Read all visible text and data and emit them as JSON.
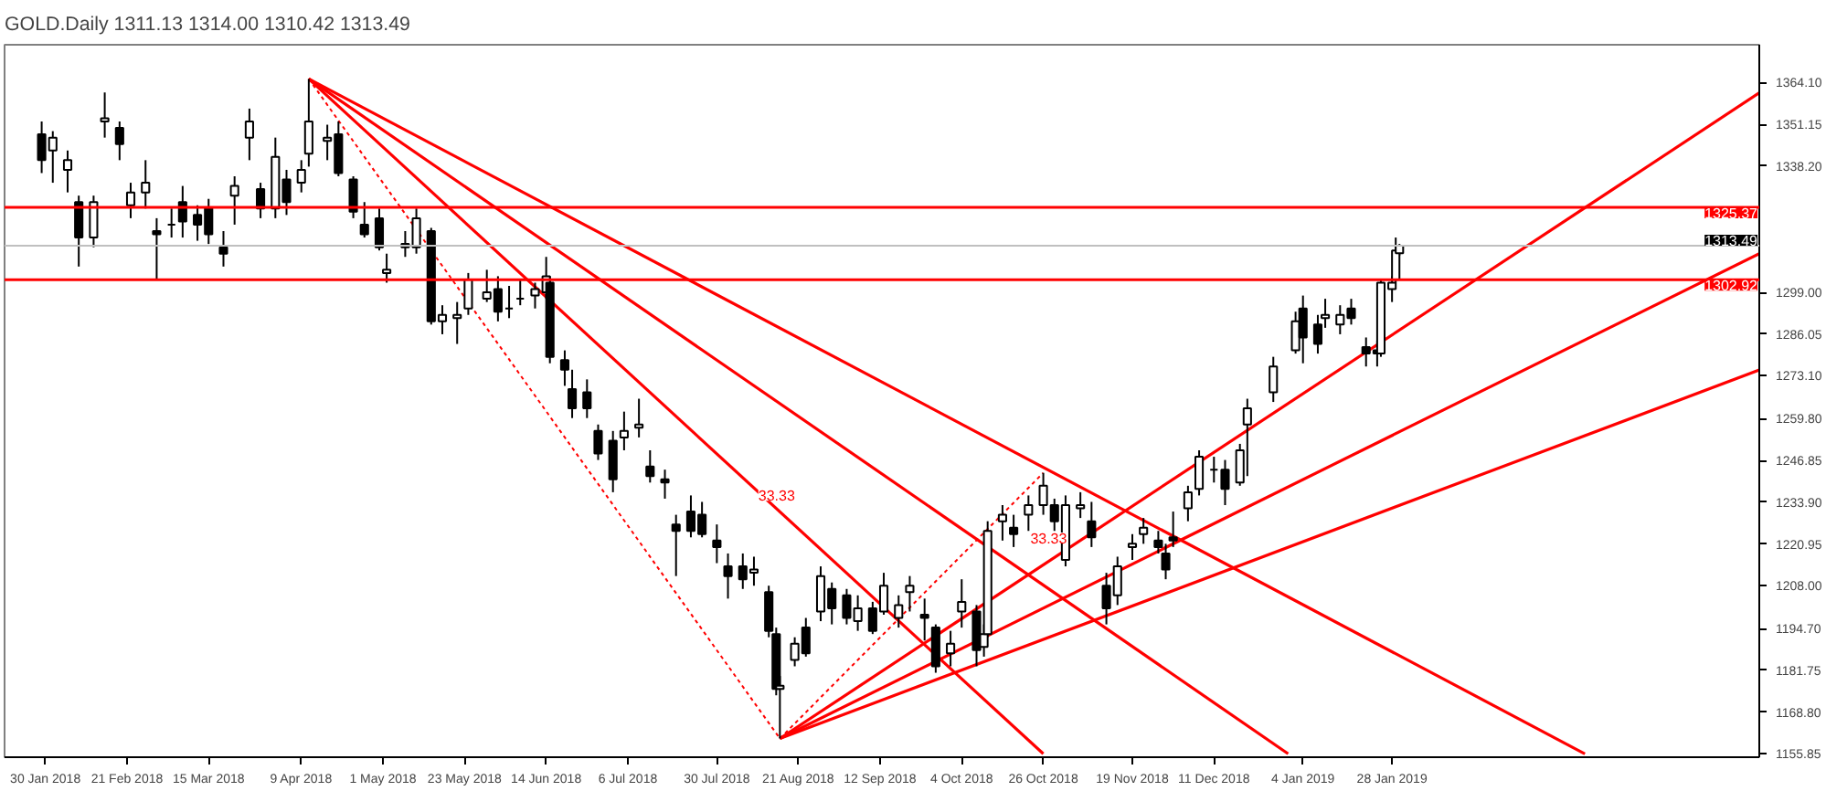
{
  "chart_data": {
    "type": "candlestick",
    "title": "GOLD.Daily  1311.13 1314.00 1310.42 1313.49",
    "x": [
      "2018-01-29",
      "2018-02-01",
      "2018-02-05",
      "2018-02-08",
      "2018-02-12",
      "2018-02-15",
      "2018-02-19",
      "2018-02-22",
      "2018-02-26",
      "2018-03-01",
      "2018-03-05",
      "2018-03-08",
      "2018-03-12",
      "2018-03-15",
      "2018-03-19",
      "2018-03-22",
      "2018-03-26",
      "2018-03-29",
      "2018-04-02",
      "2018-04-05",
      "2018-04-09",
      "2018-04-11",
      "2018-04-16",
      "2018-04-19",
      "2018-04-23",
      "2018-04-26",
      "2018-04-30",
      "2018-05-02",
      "2018-05-07",
      "2018-05-10",
      "2018-05-14",
      "2018-05-17",
      "2018-05-21",
      "2018-05-24",
      "2018-05-29",
      "2018-06-01",
      "2018-06-04",
      "2018-06-07",
      "2018-06-11",
      "2018-06-14",
      "2018-06-15",
      "2018-06-19",
      "2018-06-21",
      "2018-06-25",
      "2018-06-28",
      "2018-07-02",
      "2018-07-05",
      "2018-07-09",
      "2018-07-12",
      "2018-07-16",
      "2018-07-19",
      "2018-07-23",
      "2018-07-26",
      "2018-07-30",
      "2018-08-02",
      "2018-08-06",
      "2018-08-09",
      "2018-08-13",
      "2018-08-15",
      "2018-08-16",
      "2018-08-20",
      "2018-08-23",
      "2018-08-27",
      "2018-08-30",
      "2018-09-03",
      "2018-09-06",
      "2018-09-10",
      "2018-09-13",
      "2018-09-17",
      "2018-09-20",
      "2018-09-24",
      "2018-09-27",
      "2018-10-01",
      "2018-10-04",
      "2018-10-08",
      "2018-10-10",
      "2018-10-11",
      "2018-10-15",
      "2018-10-18",
      "2018-10-22",
      "2018-10-26",
      "2018-10-29",
      "2018-11-01",
      "2018-11-05",
      "2018-11-08",
      "2018-11-12",
      "2018-11-15",
      "2018-11-19",
      "2018-11-22",
      "2018-11-26",
      "2018-11-28",
      "2018-11-30",
      "2018-12-04",
      "2018-12-07",
      "2018-12-11",
      "2018-12-14",
      "2018-12-18",
      "2018-12-20",
      "2018-12-27",
      "2019-01-02",
      "2019-01-04",
      "2019-01-08",
      "2019-01-10",
      "2019-01-14",
      "2019-01-17",
      "2019-01-21",
      "2019-01-24",
      "2019-01-25",
      "2019-01-28",
      "2019-01-29",
      "2019-01-30"
    ],
    "ohlc": [
      [
        1348,
        1352,
        1336,
        1340
      ],
      [
        1343,
        1349,
        1333,
        1347
      ],
      [
        1337,
        1343,
        1330,
        1340
      ],
      [
        1327,
        1329,
        1307,
        1316
      ],
      [
        1316,
        1329,
        1313,
        1327
      ],
      [
        1352,
        1361,
        1347,
        1353
      ],
      [
        1350,
        1352,
        1340,
        1345
      ],
      [
        1326,
        1333,
        1322,
        1330
      ],
      [
        1330,
        1340,
        1325,
        1333
      ],
      [
        1318,
        1322,
        1303,
        1317
      ],
      [
        1320,
        1325,
        1316,
        1320
      ],
      [
        1327,
        1332,
        1316,
        1321
      ],
      [
        1323,
        1326,
        1315,
        1320
      ],
      [
        1325,
        1328,
        1314,
        1317
      ],
      [
        1313,
        1318,
        1307,
        1311
      ],
      [
        1329,
        1335,
        1320,
        1332
      ],
      [
        1347,
        1356,
        1340,
        1352
      ],
      [
        1331,
        1333,
        1322,
        1325
      ],
      [
        1325,
        1347,
        1322,
        1341
      ],
      [
        1334,
        1337,
        1323,
        1327
      ],
      [
        1333,
        1340,
        1330,
        1337
      ],
      [
        1342,
        1365.2,
        1338,
        1352
      ],
      [
        1346,
        1351,
        1340,
        1347
      ],
      [
        1348,
        1352,
        1335,
        1336
      ],
      [
        1334,
        1335,
        1322,
        1324
      ],
      [
        1320,
        1327,
        1316,
        1317
      ],
      [
        1322,
        1325,
        1312,
        1313
      ],
      [
        1305,
        1311,
        1302,
        1306
      ],
      [
        1314,
        1318,
        1310,
        1313
      ],
      [
        1313,
        1325,
        1311,
        1322
      ],
      [
        1318,
        1319,
        1289,
        1290
      ],
      [
        1290,
        1295,
        1286,
        1292
      ],
      [
        1291,
        1296,
        1283,
        1292
      ],
      [
        1294,
        1305,
        1292,
        1303
      ],
      [
        1297,
        1306,
        1296,
        1299
      ],
      [
        1300,
        1304,
        1290,
        1293
      ],
      [
        1294,
        1301,
        1291,
        1294
      ],
      [
        1297,
        1303,
        1295,
        1297
      ],
      [
        1298,
        1302,
        1294,
        1300
      ],
      [
        1299,
        1310,
        1297,
        1304
      ],
      [
        1302,
        1304,
        1277,
        1279
      ],
      [
        1278,
        1281,
        1270,
        1275
      ],
      [
        1269,
        1275,
        1260,
        1263
      ],
      [
        1268,
        1272,
        1260,
        1263
      ],
      [
        1256,
        1258,
        1247,
        1249
      ],
      [
        1253,
        1256,
        1237,
        1241
      ],
      [
        1254,
        1262,
        1250,
        1256
      ],
      [
        1257,
        1266,
        1254,
        1258
      ],
      [
        1245,
        1250,
        1240,
        1242
      ],
      [
        1241,
        1244,
        1235,
        1240
      ],
      [
        1227,
        1230,
        1211,
        1225
      ],
      [
        1231,
        1236,
        1223,
        1225
      ],
      [
        1230,
        1234,
        1223,
        1224
      ],
      [
        1222,
        1227,
        1215,
        1220
      ],
      [
        1214,
        1218,
        1204,
        1211
      ],
      [
        1214,
        1218,
        1207,
        1210
      ],
      [
        1212,
        1217,
        1208,
        1213
      ],
      [
        1206,
        1208,
        1192,
        1194
      ],
      [
        1193,
        1195,
        1174,
        1176
      ],
      [
        1176,
        1180,
        1160.6,
        1177
      ],
      [
        1185,
        1192,
        1183,
        1190
      ],
      [
        1195,
        1198,
        1186,
        1187
      ],
      [
        1200,
        1214,
        1197,
        1211
      ],
      [
        1207,
        1209,
        1196,
        1201
      ],
      [
        1205,
        1207,
        1196,
        1198
      ],
      [
        1197,
        1205,
        1194,
        1201
      ],
      [
        1201,
        1203,
        1193,
        1194
      ],
      [
        1200,
        1212,
        1199,
        1208
      ],
      [
        1198,
        1205,
        1195,
        1202
      ],
      [
        1206,
        1211,
        1200,
        1208
      ],
      [
        1199,
        1204,
        1191,
        1198
      ],
      [
        1195,
        1196,
        1181,
        1183
      ],
      [
        1187,
        1194,
        1183,
        1190
      ],
      [
        1200,
        1210,
        1195,
        1203
      ],
      [
        1200,
        1202,
        1183,
        1188
      ],
      [
        1189,
        1196,
        1186,
        1193
      ],
      [
        1193,
        1228,
        1192,
        1225
      ],
      [
        1228,
        1233,
        1222,
        1230
      ],
      [
        1226,
        1230,
        1220,
        1224
      ],
      [
        1230,
        1236,
        1225,
        1233
      ],
      [
        1233,
        1243,
        1230,
        1239
      ],
      [
        1233,
        1235,
        1225,
        1228
      ],
      [
        1216,
        1236,
        1214,
        1233
      ],
      [
        1232,
        1237,
        1229,
        1233
      ],
      [
        1228,
        1234,
        1220,
        1223
      ],
      [
        1208,
        1212,
        1196,
        1201
      ],
      [
        1205,
        1217,
        1202,
        1214
      ],
      [
        1220,
        1224,
        1216,
        1221
      ],
      [
        1224,
        1229,
        1221,
        1226
      ],
      [
        1222,
        1225,
        1218,
        1220
      ],
      [
        1218,
        1221,
        1210,
        1213
      ],
      [
        1223,
        1231,
        1220,
        1222
      ],
      [
        1232,
        1239,
        1228,
        1237
      ],
      [
        1238,
        1250,
        1236,
        1248
      ],
      [
        1244,
        1248,
        1240,
        1244
      ],
      [
        1244,
        1247,
        1233,
        1238
      ],
      [
        1240,
        1252,
        1239,
        1250
      ],
      [
        1258,
        1266,
        1242,
        1263
      ],
      [
        1268,
        1279,
        1265,
        1276
      ],
      [
        1281,
        1293,
        1280,
        1290
      ],
      [
        1294,
        1298,
        1277,
        1285
      ],
      [
        1289,
        1292,
        1280,
        1283
      ],
      [
        1291,
        1297,
        1288,
        1292
      ],
      [
        1289,
        1295,
        1286,
        1292
      ],
      [
        1294,
        1297,
        1289,
        1291
      ],
      [
        1282,
        1285,
        1276,
        1280
      ],
      [
        1281,
        1284,
        1276,
        1280
      ],
      [
        1280,
        1303,
        1279,
        1302
      ],
      [
        1300,
        1304,
        1296,
        1302
      ],
      [
        1303,
        1316,
        1302,
        1312
      ],
      [
        1311.13,
        1314.0,
        1310.42,
        1313.49
      ]
    ],
    "series": [
      {
        "type": "line",
        "color": "#ff0000",
        "line_style": "solid",
        "x": [
          "2018-04-11",
          "2019-03-21"
        ],
        "values": [
          1365.2,
          1155.85
        ]
      },
      {
        "type": "line",
        "color": "#ff0000",
        "line_style": "solid",
        "x": [
          "2018-04-11",
          "2018-12-31"
        ],
        "values": [
          1365.2,
          1155.85
        ]
      },
      {
        "type": "line",
        "color": "#ff0000",
        "line_style": "solid",
        "x": [
          "2018-04-11",
          "2018-10-26"
        ],
        "values": [
          1365.2,
          1155.85
        ]
      },
      {
        "type": "line",
        "color": "#ff0000",
        "line_style": "dotted",
        "x": [
          "2018-04-11",
          "2018-08-16"
        ],
        "values": [
          1365.2,
          1160.6
        ]
      },
      {
        "type": "line",
        "color": "#ff0000",
        "line_style": "solid",
        "x": [
          "2018-08-16",
          "2019-05-07"
        ],
        "values": [
          1160.6,
          1360.9
        ]
      },
      {
        "type": "line",
        "color": "#ff0000",
        "line_style": "solid",
        "x": [
          "2018-08-16",
          "2019-05-07"
        ],
        "values": [
          1160.6,
          1311.0
        ]
      },
      {
        "type": "line",
        "color": "#ff0000",
        "line_style": "solid",
        "x": [
          "2018-08-16",
          "2019-05-07"
        ],
        "values": [
          1160.6,
          1274.9
        ]
      },
      {
        "type": "line",
        "color": "#ff0000",
        "line_style": "dotted",
        "x": [
          "2018-08-16",
          "2018-10-26"
        ],
        "values": [
          1160.6,
          1243.0
        ]
      }
    ],
    "ref_lines": [
      {
        "axis": "y",
        "value": 1325.37,
        "label": "1325.37",
        "color": "#ff0000"
      },
      {
        "axis": "y",
        "value": 1313.49,
        "label": "1313.49",
        "color": "#c0c0c0"
      },
      {
        "axis": "y",
        "value": 1302.92,
        "label": "1302.92",
        "color": "#ff0000"
      }
    ],
    "annotations": [
      "33.33",
      "33.33"
    ],
    "xlim": [
      "2018-01-19",
      "2019-05-07"
    ],
    "xticks": [
      {
        "value": "2018-01-30",
        "label": "30 Jan 2018"
      },
      {
        "value": "2018-02-21",
        "label": "21 Feb 2018"
      },
      {
        "value": "2018-03-15",
        "label": "15 Mar 2018"
      },
      {
        "value": "2018-04-09",
        "label": "9 Apr 2018"
      },
      {
        "value": "2018-05-01",
        "label": "1 May 2018"
      },
      {
        "value": "2018-05-23",
        "label": "23 May 2018"
      },
      {
        "value": "2018-06-14",
        "label": "14 Jun 2018"
      },
      {
        "value": "2018-07-06",
        "label": "6 Jul 2018"
      },
      {
        "value": "2018-07-30",
        "label": "30 Jul 2018"
      },
      {
        "value": "2018-08-21",
        "label": "21 Aug 2018"
      },
      {
        "value": "2018-09-12",
        "label": "12 Sep 2018"
      },
      {
        "value": "2018-10-04",
        "label": "4 Oct 2018"
      },
      {
        "value": "2018-10-26",
        "label": "26 Oct 2018"
      },
      {
        "value": "2018-11-19",
        "label": "19 Nov 2018"
      },
      {
        "value": "2018-12-11",
        "label": "11 Dec 2018"
      },
      {
        "value": "2019-01-04",
        "label": "4 Jan 2019"
      },
      {
        "value": "2019-01-28",
        "label": "28 Jan 2019"
      }
    ],
    "ylim": [
      1154.8,
      1375.8
    ],
    "yticks": [
      {
        "value": 1364.1,
        "label": "1364.10"
      },
      {
        "value": 1351.15,
        "label": "1351.15"
      },
      {
        "value": 1338.2,
        "label": "1338.20"
      },
      {
        "value": 1299.0,
        "label": "1299.00"
      },
      {
        "value": 1286.05,
        "label": "1286.05"
      },
      {
        "value": 1273.1,
        "label": "1273.10"
      },
      {
        "value": 1259.8,
        "label": "1259.80"
      },
      {
        "value": 1246.85,
        "label": "1246.85"
      },
      {
        "value": 1233.9,
        "label": "1233.90"
      },
      {
        "value": 1220.95,
        "label": "1220.95"
      },
      {
        "value": 1208.0,
        "label": "1208.00"
      },
      {
        "value": 1194.7,
        "label": "1194.70"
      },
      {
        "value": 1181.75,
        "label": "1181.75"
      },
      {
        "value": 1168.8,
        "label": "1168.80"
      },
      {
        "value": 1155.85,
        "label": "1155.85"
      }
    ],
    "grid": false
  }
}
